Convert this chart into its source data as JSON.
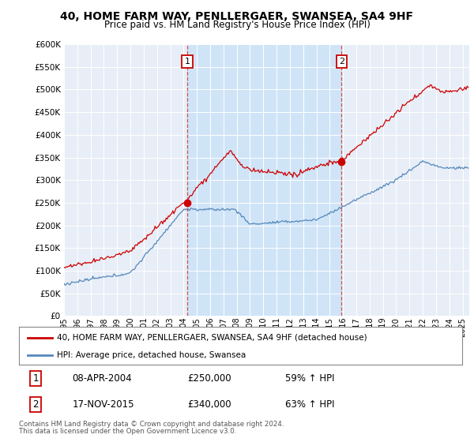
{
  "title": "40, HOME FARM WAY, PENLLERGAER, SWANSEA, SA4 9HF",
  "subtitle": "Price paid vs. HM Land Registry's House Price Index (HPI)",
  "ylabel_ticks": [
    "£0",
    "£50K",
    "£100K",
    "£150K",
    "£200K",
    "£250K",
    "£300K",
    "£350K",
    "£400K",
    "£450K",
    "£500K",
    "£550K",
    "£600K"
  ],
  "ylim": [
    0,
    600000
  ],
  "yticks": [
    0,
    50000,
    100000,
    150000,
    200000,
    250000,
    300000,
    350000,
    400000,
    450000,
    500000,
    550000,
    600000
  ],
  "xlim_start": 1995.0,
  "xlim_end": 2025.5,
  "marker1_x": 2004.27,
  "marker1_y": 250000,
  "marker1_label": "1",
  "marker2_x": 2015.88,
  "marker2_y": 340000,
  "marker2_label": "2",
  "marker1_date": "08-APR-2004",
  "marker1_price": "£250,000",
  "marker1_hpi": "59% ↑ HPI",
  "marker2_date": "17-NOV-2015",
  "marker2_price": "£340,000",
  "marker2_hpi": "63% ↑ HPI",
  "red_color": "#cc0000",
  "blue_color": "#5588bb",
  "shade_color": "#d0e4f7",
  "dashed_color": "#cc4444",
  "legend_label1": "40, HOME FARM WAY, PENLLERGAER, SWANSEA, SA4 9HF (detached house)",
  "legend_label2": "HPI: Average price, detached house, Swansea",
  "footer1": "Contains HM Land Registry data © Crown copyright and database right 2024.",
  "footer2": "This data is licensed under the Open Government Licence v3.0.",
  "background_color": "#ffffff",
  "plot_bg_color": "#e8eef7"
}
